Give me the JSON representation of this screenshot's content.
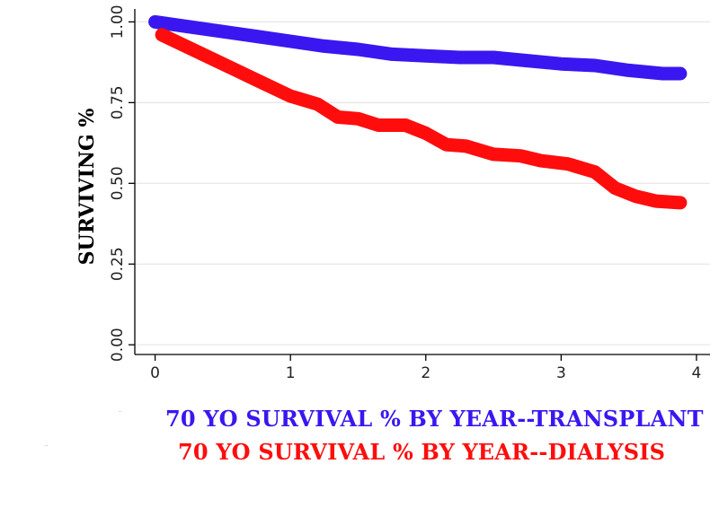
{
  "chart_data": {
    "type": "line",
    "title": "",
    "xlabel": "",
    "ylabel": "SURVIVING %",
    "xlim": [
      -0.15,
      4.1
    ],
    "ylim": [
      -0.03,
      1.04
    ],
    "xticks": [
      0,
      1,
      2,
      3,
      4
    ],
    "xtick_labels": [
      "0",
      "1",
      "2",
      "3",
      "4"
    ],
    "yticks": [
      0,
      0.25,
      0.5,
      0.75,
      1
    ],
    "ytick_labels": [
      "0.00",
      "0.25",
      "0.50",
      "0.75",
      "1.00"
    ],
    "grid": true,
    "legend": "bottom",
    "series": [
      {
        "name": "70 YO SURVIVAL % BY YEAR--TRANSPLANT",
        "color": "#3a17f0",
        "x": [
          0,
          0.25,
          0.5,
          0.75,
          1.0,
          1.25,
          1.5,
          1.75,
          2.0,
          2.25,
          2.5,
          2.75,
          3.0,
          3.25,
          3.5,
          3.75,
          3.88
        ],
        "y": [
          1.0,
          0.985,
          0.97,
          0.955,
          0.94,
          0.925,
          0.915,
          0.9,
          0.895,
          0.89,
          0.89,
          0.88,
          0.87,
          0.865,
          0.85,
          0.84,
          0.84
        ]
      },
      {
        "name": "70 YO SURVIVAL % BY YEAR--DIALYSIS",
        "color": "#ff0d0d",
        "x": [
          0.05,
          0.25,
          0.5,
          0.75,
          1.0,
          1.2,
          1.35,
          1.5,
          1.65,
          1.85,
          2.0,
          2.15,
          2.3,
          2.5,
          2.7,
          2.85,
          3.05,
          3.25,
          3.4,
          3.55,
          3.7,
          3.88
        ],
        "y": [
          0.96,
          0.92,
          0.87,
          0.82,
          0.77,
          0.745,
          0.705,
          0.7,
          0.68,
          0.68,
          0.655,
          0.62,
          0.615,
          0.59,
          0.585,
          0.57,
          0.56,
          0.535,
          0.485,
          0.46,
          0.445,
          0.44
        ]
      }
    ]
  }
}
